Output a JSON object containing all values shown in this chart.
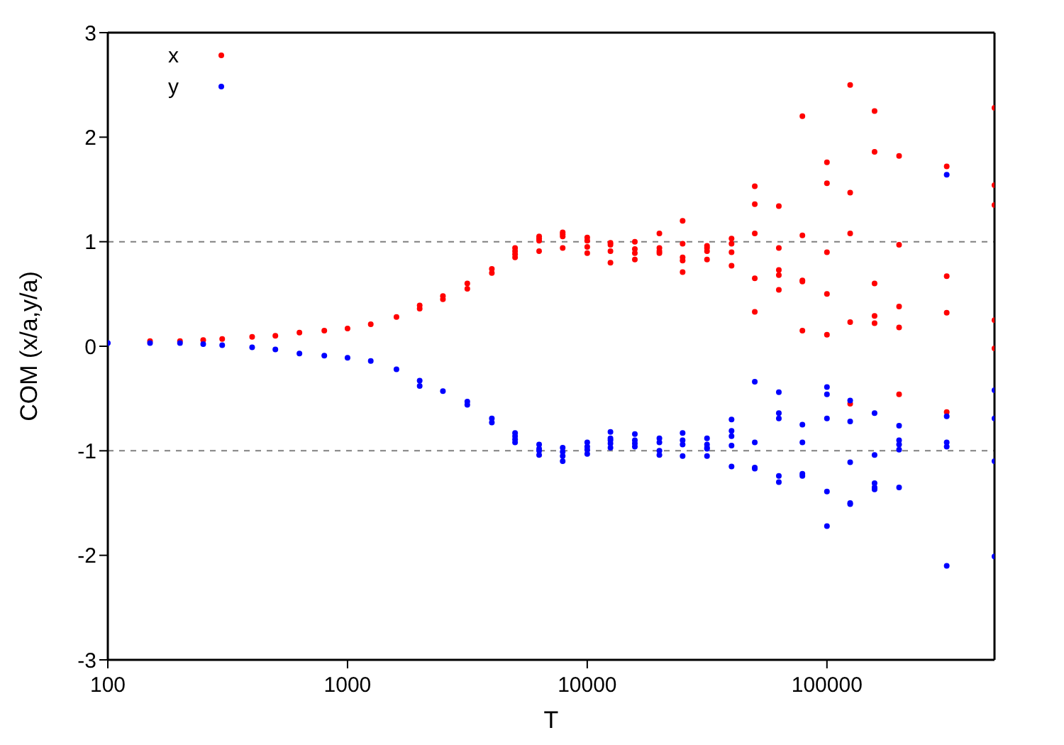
{
  "chart_data": {
    "type": "scatter",
    "xlabel": "T",
    "ylabel": "COM (x/a,y/a)",
    "log": "x",
    "xlim": [
      100,
      500000
    ],
    "xticks": [
      100,
      1000,
      10000,
      100000
    ],
    "ylim": [
      -3,
      3
    ],
    "yticks": [
      -3,
      -2,
      -1,
      0,
      1,
      2,
      3
    ],
    "legend": "top left",
    "marker": "circle",
    "ref_lines": [
      {
        "axis": "y",
        "value": 1,
        "color": "#808080",
        "line_style": "dashed"
      },
      {
        "axis": "y",
        "value": -1,
        "color": "#808080",
        "line_style": "dashed"
      }
    ],
    "series": [
      {
        "name": "x",
        "color": "#ff0000",
        "x": [
          150,
          200,
          250,
          300,
          400,
          500,
          630,
          800,
          1000,
          1250,
          1600,
          2000,
          2000,
          2500,
          2500,
          3160,
          3160,
          4000,
          4000,
          5000,
          5000,
          5000,
          5000,
          6300,
          6300,
          6300,
          6300,
          7900,
          7900,
          7900,
          7900,
          10000,
          10000,
          10000,
          10000,
          12500,
          12500,
          12500,
          12500,
          15800,
          15800,
          15800,
          15800,
          20000,
          20000,
          20000,
          20000,
          25000,
          25000,
          25000,
          25000,
          25000,
          31600,
          31600,
          31600,
          31600,
          40000,
          40000,
          40000,
          40000,
          50000,
          50000,
          50000,
          50000,
          50000,
          63000,
          63000,
          63000,
          63000,
          63000,
          79000,
          79000,
          79000,
          79000,
          79000,
          100000,
          100000,
          100000,
          100000,
          100000,
          125000,
          125000,
          125000,
          125000,
          125000,
          158000,
          158000,
          158000,
          158000,
          158000,
          200000,
          200000,
          200000,
          200000,
          200000,
          316000,
          316000,
          316000,
          316000,
          500000,
          500000,
          500000,
          500000,
          500000
        ],
        "values": [
          0.05,
          0.05,
          0.06,
          0.07,
          0.09,
          0.1,
          0.13,
          0.15,
          0.17,
          0.21,
          0.28,
          0.36,
          0.39,
          0.45,
          0.48,
          0.55,
          0.6,
          0.7,
          0.74,
          0.85,
          0.88,
          0.91,
          0.94,
          0.91,
          1.01,
          1.03,
          1.05,
          0.94,
          1.05,
          1.07,
          1.09,
          0.89,
          0.95,
          1.01,
          1.04,
          0.8,
          0.91,
          0.97,
          0.99,
          0.83,
          0.89,
          0.93,
          1.0,
          0.89,
          0.91,
          0.94,
          1.08,
          0.71,
          0.82,
          0.85,
          0.98,
          1.2,
          0.83,
          0.91,
          0.94,
          0.96,
          0.77,
          0.9,
          0.98,
          1.03,
          0.33,
          0.65,
          1.08,
          1.36,
          1.53,
          0.54,
          0.68,
          0.73,
          0.94,
          1.34,
          0.15,
          0.62,
          0.63,
          1.06,
          2.2,
          0.11,
          0.5,
          0.9,
          1.56,
          1.76,
          -0.55,
          0.23,
          1.08,
          1.47,
          2.5,
          0.22,
          0.29,
          0.6,
          1.86,
          2.25,
          -0.46,
          0.18,
          0.38,
          0.97,
          1.82,
          -0.63,
          0.32,
          0.67,
          1.72,
          -0.02,
          0.25,
          1.35,
          1.54,
          2.28
        ]
      },
      {
        "name": "y",
        "color": "#0000ff",
        "x": [
          100,
          150,
          200,
          250,
          300,
          400,
          500,
          630,
          800,
          1000,
          1250,
          1600,
          2000,
          2000,
          2500,
          3160,
          3160,
          4000,
          4000,
          5000,
          5000,
          5000,
          5000,
          6300,
          6300,
          6300,
          6300,
          7900,
          7900,
          7900,
          7900,
          10000,
          10000,
          10000,
          10000,
          12500,
          12500,
          12500,
          12500,
          12500,
          15800,
          15800,
          15800,
          15800,
          20000,
          20000,
          20000,
          20000,
          25000,
          25000,
          25000,
          25000,
          31600,
          31600,
          31600,
          31600,
          31600,
          40000,
          40000,
          40000,
          40000,
          40000,
          50000,
          50000,
          50000,
          50000,
          63000,
          63000,
          63000,
          63000,
          63000,
          79000,
          79000,
          79000,
          79000,
          100000,
          100000,
          100000,
          100000,
          100000,
          125000,
          125000,
          125000,
          125000,
          125000,
          158000,
          158000,
          158000,
          158000,
          158000,
          200000,
          200000,
          200000,
          200000,
          200000,
          316000,
          316000,
          316000,
          316000,
          316000,
          500000,
          500000,
          500000,
          500000
        ],
        "values": [
          0.03,
          0.03,
          0.03,
          0.02,
          0.01,
          -0.01,
          -0.03,
          -0.07,
          -0.09,
          -0.11,
          -0.14,
          -0.22,
          -0.33,
          -0.38,
          -0.43,
          -0.53,
          -0.56,
          -0.69,
          -0.73,
          -0.83,
          -0.86,
          -0.89,
          -0.92,
          -0.94,
          -0.98,
          -1.0,
          -1.04,
          -0.97,
          -1.01,
          -1.05,
          -1.1,
          -0.92,
          -0.96,
          -0.99,
          -1.03,
          -0.82,
          -0.88,
          -0.9,
          -0.93,
          -0.97,
          -0.84,
          -0.9,
          -0.93,
          -0.96,
          -0.88,
          -0.92,
          -1.0,
          -1.04,
          -0.83,
          -0.9,
          -0.94,
          -1.05,
          -0.88,
          -0.94,
          -0.97,
          -0.98,
          -1.05,
          -0.7,
          -0.81,
          -0.86,
          -0.95,
          -1.15,
          -0.34,
          -0.92,
          -1.16,
          -1.17,
          -0.44,
          -0.64,
          -0.69,
          -1.24,
          -1.3,
          -0.75,
          -0.92,
          -1.22,
          -1.24,
          -0.39,
          -0.46,
          -0.69,
          -1.39,
          -1.72,
          -0.52,
          -0.72,
          -1.11,
          -1.5,
          -1.51,
          -0.64,
          -1.04,
          -1.31,
          -1.35,
          -1.37,
          -0.76,
          -0.9,
          -0.94,
          -0.99,
          -1.35,
          1.64,
          -0.67,
          -0.92,
          -0.96,
          -2.1,
          -0.42,
          -0.69,
          -1.1,
          -2.01
        ]
      }
    ]
  }
}
